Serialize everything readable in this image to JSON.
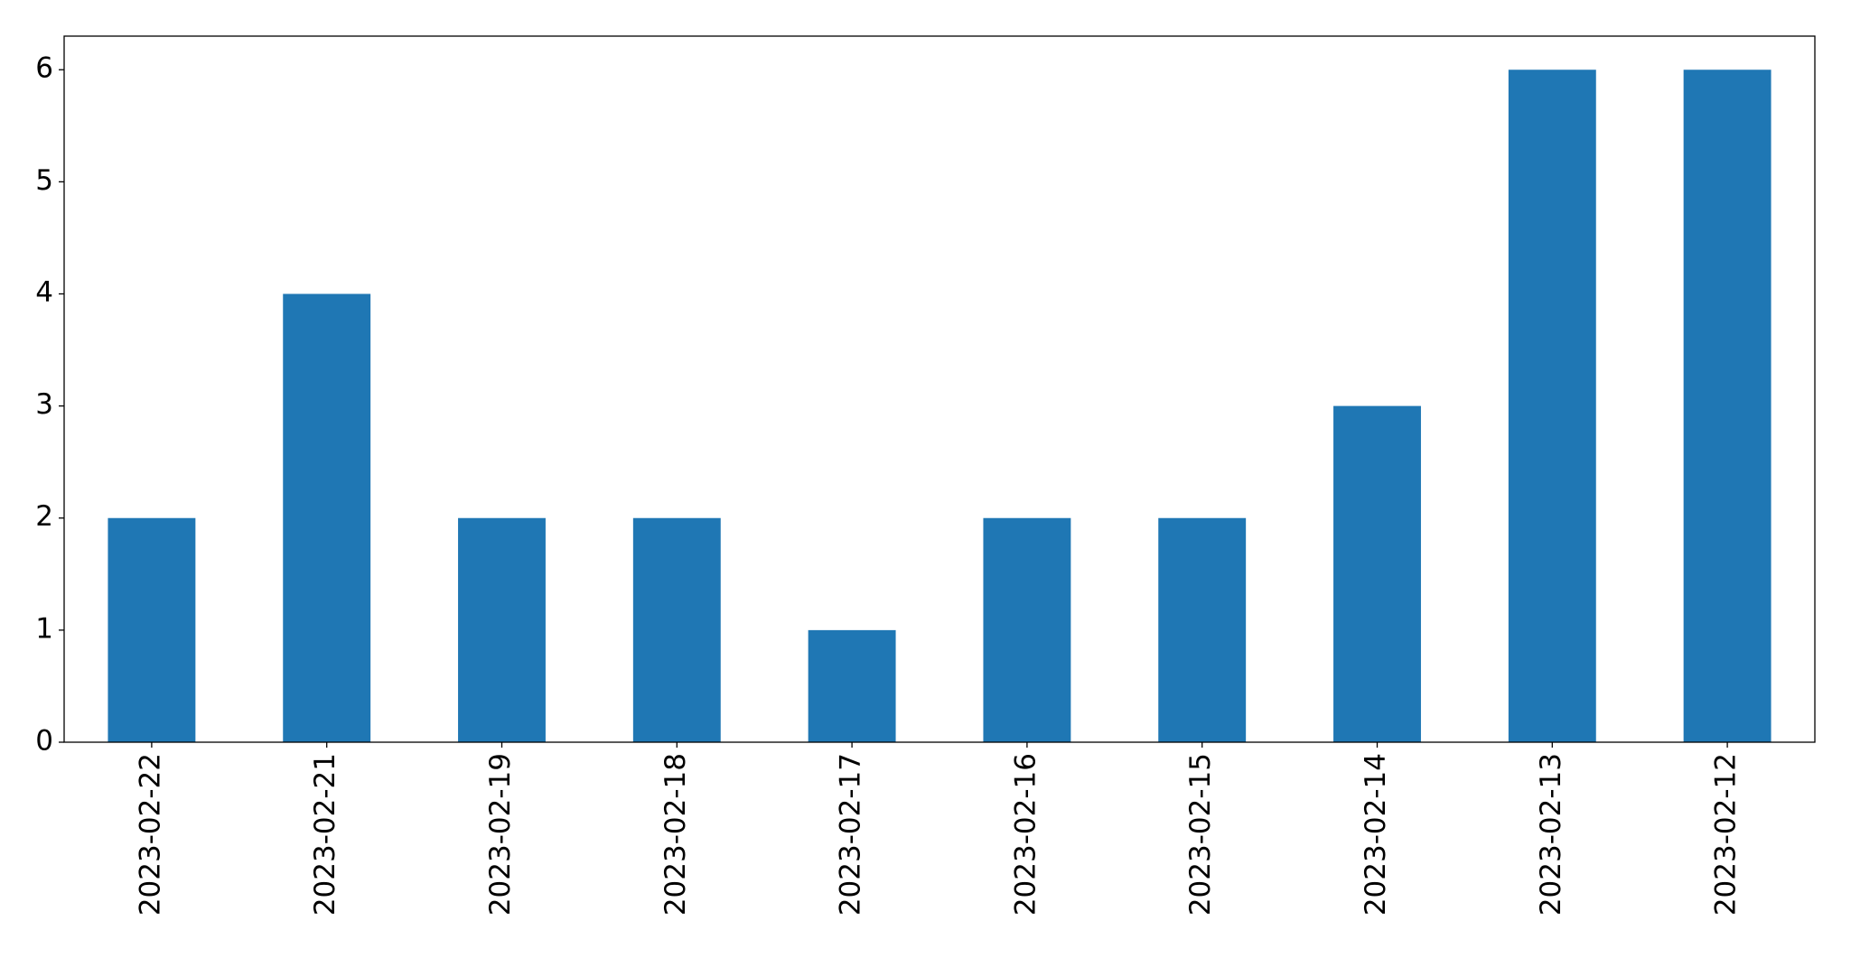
{
  "chart_data": {
    "type": "bar",
    "categories": [
      "2023-02-22",
      "2023-02-21",
      "2023-02-19",
      "2023-02-18",
      "2023-02-17",
      "2023-02-16",
      "2023-02-15",
      "2023-02-14",
      "2023-02-13",
      "2023-02-12"
    ],
    "values": [
      2,
      4,
      2,
      2,
      1,
      2,
      2,
      3,
      6,
      6
    ],
    "color": "#1f77b4",
    "ylim": [
      0,
      6.3
    ],
    "yticks": [
      0,
      1,
      2,
      3,
      4,
      5,
      6
    ],
    "grid": false
  }
}
